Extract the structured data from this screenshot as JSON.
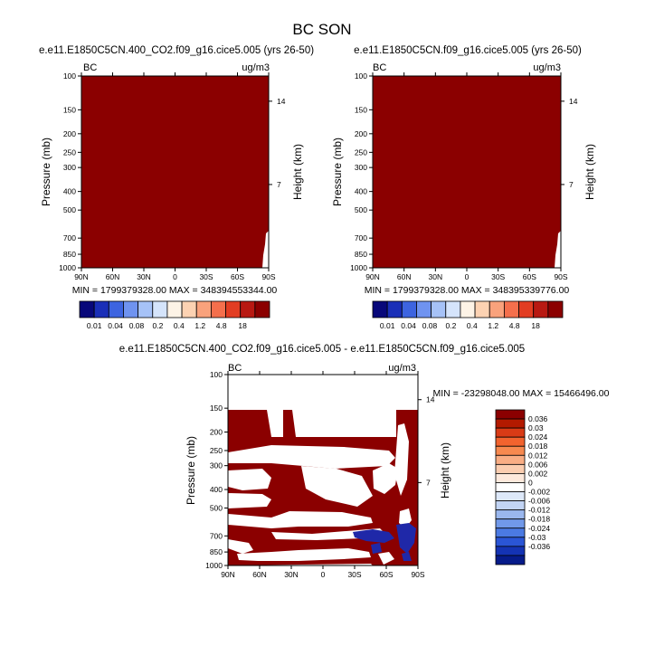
{
  "figure": {
    "title": "BC SON"
  },
  "chart_data": [
    {
      "type": "heatmap",
      "title": "e.e11.E1850C5CN.400_CO2.f09_g16.cice5.005 (yrs 26-50)",
      "left_label": "BC",
      "right_label": "ug/m3",
      "ylabel": "Pressure (mb)",
      "y2label": "Height (km)",
      "x_ticks": [
        "90N",
        "60N",
        "30N",
        "0",
        "30S",
        "60S",
        "90S"
      ],
      "y_ticks": [
        "100",
        "150",
        "200",
        "250",
        "300",
        "400",
        "500",
        "700",
        "850",
        "1000"
      ],
      "y2_ticks": [
        "14",
        "7"
      ],
      "ylim": [
        1000,
        100
      ],
      "y_scale": "log",
      "stats": "MIN = 1799379328.00   MAX = 348394553344.00",
      "fill_color": "#8b0000"
    },
    {
      "type": "heatmap",
      "title": "e.e11.E1850C5CN.f09_g16.cice5.005 (yrs 26-50)",
      "left_label": "BC",
      "right_label": "ug/m3",
      "ylabel": "Pressure (mb)",
      "y2label": "Height (km)",
      "x_ticks": [
        "90N",
        "60N",
        "30N",
        "0",
        "30S",
        "60S",
        "90S"
      ],
      "y_ticks": [
        "100",
        "150",
        "200",
        "250",
        "300",
        "400",
        "500",
        "700",
        "850",
        "1000"
      ],
      "y2_ticks": [
        "14",
        "7"
      ],
      "ylim": [
        1000,
        100
      ],
      "y_scale": "log",
      "stats": "MIN = 1799379328.00   MAX = 348395339776.00",
      "fill_color": "#8b0000"
    },
    {
      "type": "heatmap",
      "title": "e.e11.E1850C5CN.400_CO2.f09_g16.cice5.005 - e.e11.E1850C5CN.f09_g16.cice5.005",
      "left_label": "BC",
      "right_label": "ug/m3",
      "ylabel": "Pressure (mb)",
      "y2label": "Height (km)",
      "x_ticks": [
        "90N",
        "60N",
        "30N",
        "0",
        "30S",
        "60S",
        "90S"
      ],
      "y_ticks": [
        "100",
        "150",
        "200",
        "250",
        "300",
        "400",
        "500",
        "700",
        "850",
        "1000"
      ],
      "y2_ticks": [
        "14",
        "7"
      ],
      "ylim": [
        1000,
        100
      ],
      "y_scale": "log",
      "stats": "MIN = -23298048.00   MAX = 15466496.00",
      "positive_color": "#8b0000",
      "negative_color": "#1f28a8"
    }
  ],
  "colorbars": {
    "absolute": {
      "labels": [
        "0.01",
        "0.04",
        "0.08",
        "0.2",
        "0.4",
        "1.2",
        "4.8",
        "18"
      ],
      "colors": [
        "#08087a",
        "#1a2fb8",
        "#3d64e0",
        "#6f93f0",
        "#a6c2f7",
        "#d5e4fb",
        "#fdf3e6",
        "#fcd2b2",
        "#f9a27c",
        "#f46f4c",
        "#e23d22",
        "#b81912",
        "#8b0000"
      ]
    },
    "difference": {
      "labels": [
        "0.036",
        "0.03",
        "0.024",
        "0.018",
        "0.012",
        "0.006",
        "0.002",
        "0",
        "-0.002",
        "-0.006",
        "-0.012",
        "-0.018",
        "-0.024",
        "-0.03",
        "-0.036"
      ],
      "colors": [
        "#8b0000",
        "#b31a00",
        "#d93b16",
        "#f2632e",
        "#f7894f",
        "#f9ad84",
        "#fbcdb0",
        "#fde9dc",
        "#ffffff",
        "#dde8f9",
        "#c2d4f4",
        "#9ab7ee",
        "#7199e9",
        "#4b7ae3",
        "#2a55d6",
        "#1433b4",
        "#061b8a"
      ]
    }
  }
}
